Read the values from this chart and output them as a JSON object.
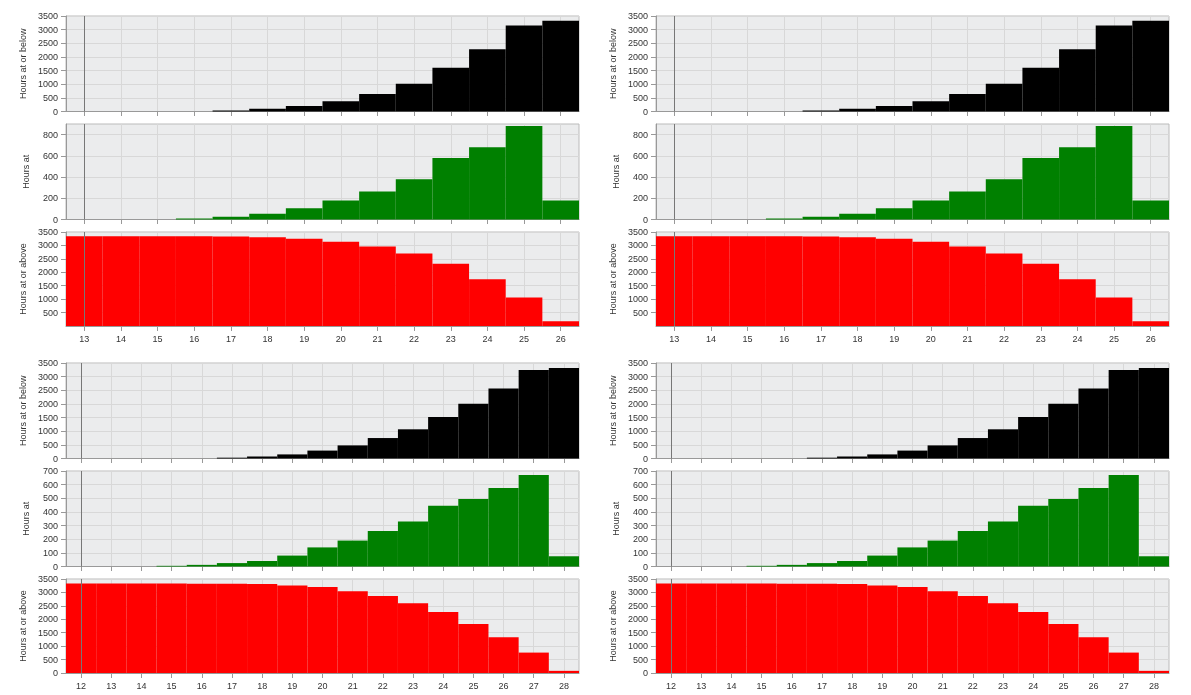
{
  "chart_data": [
    {
      "type": "histogram",
      "ylabel": "Hours at or below",
      "bins": [
        12.5,
        13.5,
        14.5,
        15.5,
        16.5,
        17.5,
        18.5,
        19.5,
        20.5,
        21.5,
        22.5,
        23.5,
        24.5,
        25.5,
        26.5
      ],
      "values": [
        0,
        0,
        0,
        0,
        40,
        100,
        200,
        380,
        640,
        1020,
        1600,
        2280,
        3150,
        3330
      ],
      "color": "#000000",
      "xlim": [
        12.5,
        26.5
      ],
      "xticks": [
        13,
        14,
        15,
        16,
        17,
        18,
        19,
        20,
        21,
        22,
        23,
        24,
        25,
        26
      ],
      "ylim": [
        0,
        3500
      ],
      "yticks": [
        0,
        500,
        1000,
        1500,
        2000,
        2500,
        3000,
        3500
      ],
      "tick_labels": "y",
      "grid": true,
      "ref_lines": [
        {
          "axis": "x",
          "value": 13
        }
      ]
    },
    {
      "type": "histogram",
      "ylabel": "Hours at",
      "bins": [
        12.5,
        13.5,
        14.5,
        15.5,
        16.5,
        17.5,
        18.5,
        19.5,
        20.5,
        21.5,
        22.5,
        23.5,
        24.5,
        25.5,
        26.5
      ],
      "values": [
        0,
        0,
        0,
        10,
        25,
        55,
        105,
        180,
        265,
        380,
        580,
        680,
        880,
        180
      ],
      "color": "#008000",
      "xlim": [
        12.5,
        26.5
      ],
      "xticks": [
        13,
        14,
        15,
        16,
        17,
        18,
        19,
        20,
        21,
        22,
        23,
        24,
        25,
        26
      ],
      "ylim": [
        0,
        900
      ],
      "yticks": [
        0,
        200,
        400,
        600,
        800
      ],
      "tick_labels": "y",
      "grid": true,
      "ref_lines": [
        {
          "axis": "x",
          "value": 13
        }
      ]
    },
    {
      "type": "histogram",
      "ylabel": "Hours at or above",
      "bins": [
        12.5,
        13.5,
        14.5,
        15.5,
        16.5,
        17.5,
        18.5,
        19.5,
        20.5,
        21.5,
        22.5,
        23.5,
        24.5,
        25.5,
        26.5
      ],
      "values": [
        3340,
        3340,
        3340,
        3340,
        3330,
        3300,
        3250,
        3140,
        2960,
        2700,
        2320,
        1740,
        1060,
        180
      ],
      "color": "#ff0000",
      "xlim": [
        12.5,
        26.5
      ],
      "xticks": [
        13,
        14,
        15,
        16,
        17,
        18,
        19,
        20,
        21,
        22,
        23,
        24,
        25,
        26
      ],
      "ylim": [
        0,
        3500
      ],
      "yticks": [
        500,
        1000,
        1500,
        2000,
        2500,
        3000,
        3500
      ],
      "grid": true,
      "ref_lines": [
        {
          "axis": "x",
          "value": 13
        }
      ]
    },
    {
      "type": "histogram",
      "ylabel": "Hours at or below",
      "bins": [
        12.5,
        13.5,
        14.5,
        15.5,
        16.5,
        17.5,
        18.5,
        19.5,
        20.5,
        21.5,
        22.5,
        23.5,
        24.5,
        25.5,
        26.5
      ],
      "values": [
        0,
        0,
        0,
        0,
        40,
        100,
        200,
        380,
        640,
        1020,
        1600,
        2280,
        3150,
        3330
      ],
      "color": "#000000",
      "xlim": [
        12.5,
        26.5
      ],
      "xticks": [
        13,
        14,
        15,
        16,
        17,
        18,
        19,
        20,
        21,
        22,
        23,
        24,
        25,
        26
      ],
      "ylim": [
        0,
        3500
      ],
      "yticks": [
        0,
        500,
        1000,
        1500,
        2000,
        2500,
        3000,
        3500
      ],
      "tick_labels": "y",
      "grid": true,
      "ref_lines": [
        {
          "axis": "x",
          "value": 13
        }
      ]
    },
    {
      "type": "histogram",
      "ylabel": "Hours at",
      "bins": [
        12.5,
        13.5,
        14.5,
        15.5,
        16.5,
        17.5,
        18.5,
        19.5,
        20.5,
        21.5,
        22.5,
        23.5,
        24.5,
        25.5,
        26.5
      ],
      "values": [
        0,
        0,
        0,
        10,
        25,
        55,
        105,
        180,
        265,
        380,
        580,
        680,
        880,
        180
      ],
      "color": "#008000",
      "xlim": [
        12.5,
        26.5
      ],
      "xticks": [
        13,
        14,
        15,
        16,
        17,
        18,
        19,
        20,
        21,
        22,
        23,
        24,
        25,
        26
      ],
      "ylim": [
        0,
        900
      ],
      "yticks": [
        0,
        200,
        400,
        600,
        800
      ],
      "tick_labels": "y",
      "grid": true,
      "ref_lines": [
        {
          "axis": "x",
          "value": 13
        }
      ]
    },
    {
      "type": "histogram",
      "ylabel": "Hours at or above",
      "bins": [
        12.5,
        13.5,
        14.5,
        15.5,
        16.5,
        17.5,
        18.5,
        19.5,
        20.5,
        21.5,
        22.5,
        23.5,
        24.5,
        25.5,
        26.5
      ],
      "values": [
        3340,
        3340,
        3340,
        3340,
        3330,
        3300,
        3250,
        3140,
        2960,
        2700,
        2320,
        1740,
        1060,
        180
      ],
      "color": "#ff0000",
      "xlim": [
        12.5,
        26.5
      ],
      "xticks": [
        13,
        14,
        15,
        16,
        17,
        18,
        19,
        20,
        21,
        22,
        23,
        24,
        25,
        26
      ],
      "ylim": [
        0,
        3500
      ],
      "yticks": [
        500,
        1000,
        1500,
        2000,
        2500,
        3000,
        3500
      ],
      "grid": true,
      "ref_lines": [
        {
          "axis": "x",
          "value": 13
        }
      ]
    },
    {
      "type": "histogram",
      "ylabel": "Hours at or below",
      "bins": [
        11.5,
        12.5,
        13.5,
        14.5,
        15.5,
        16.5,
        17.5,
        18.5,
        19.5,
        20.5,
        21.5,
        22.5,
        23.5,
        24.5,
        25.5,
        26.5,
        27.5,
        28.5
      ],
      "values": [
        0,
        0,
        0,
        0,
        0,
        30,
        70,
        150,
        290,
        480,
        750,
        1070,
        1520,
        2010,
        2570,
        3240,
        3320
      ],
      "color": "#000000",
      "xlim": [
        11.5,
        28.5
      ],
      "xticks": [
        12,
        13,
        14,
        15,
        16,
        17,
        18,
        19,
        20,
        21,
        22,
        23,
        24,
        25,
        26,
        27,
        28
      ],
      "ylim": [
        0,
        3500
      ],
      "yticks": [
        0,
        500,
        1000,
        1500,
        2000,
        2500,
        3000,
        3500
      ],
      "tick_labels": "y",
      "grid": true,
      "ref_lines": [
        {
          "axis": "x",
          "value": 12
        }
      ]
    },
    {
      "type": "histogram",
      "ylabel": "Hours at",
      "bins": [
        11.5,
        12.5,
        13.5,
        14.5,
        15.5,
        16.5,
        17.5,
        18.5,
        19.5,
        20.5,
        21.5,
        22.5,
        23.5,
        24.5,
        25.5,
        26.5,
        27.5,
        28.5
      ],
      "values": [
        0,
        0,
        0,
        5,
        12,
        25,
        40,
        80,
        140,
        190,
        260,
        330,
        445,
        495,
        575,
        670,
        75
      ],
      "color": "#008000",
      "xlim": [
        11.5,
        28.5
      ],
      "xticks": [
        12,
        13,
        14,
        15,
        16,
        17,
        18,
        19,
        20,
        21,
        22,
        23,
        24,
        25,
        26,
        27,
        28
      ],
      "ylim": [
        0,
        700
      ],
      "yticks": [
        0,
        100,
        200,
        300,
        400,
        500,
        600,
        700
      ],
      "tick_labels": "y",
      "grid": true,
      "ref_lines": [
        {
          "axis": "x",
          "value": 12
        }
      ]
    },
    {
      "type": "histogram",
      "ylabel": "Hours at or above",
      "bins": [
        11.5,
        12.5,
        13.5,
        14.5,
        15.5,
        16.5,
        17.5,
        18.5,
        19.5,
        20.5,
        21.5,
        22.5,
        23.5,
        24.5,
        25.5,
        26.5,
        27.5,
        28.5
      ],
      "values": [
        3330,
        3330,
        3330,
        3330,
        3320,
        3320,
        3310,
        3260,
        3200,
        3040,
        2870,
        2600,
        2270,
        1820,
        1330,
        760,
        80
      ],
      "color": "#ff0000",
      "xlim": [
        11.5,
        28.5
      ],
      "xticks": [
        12,
        13,
        14,
        15,
        16,
        17,
        18,
        19,
        20,
        21,
        22,
        23,
        24,
        25,
        26,
        27,
        28
      ],
      "ylim": [
        0,
        3500
      ],
      "yticks": [
        0,
        500,
        1000,
        1500,
        2000,
        2500,
        3000,
        3500
      ],
      "grid": true,
      "ref_lines": [
        {
          "axis": "x",
          "value": 12
        }
      ]
    },
    {
      "type": "histogram",
      "ylabel": "Hours at or below",
      "bins": [
        11.5,
        12.5,
        13.5,
        14.5,
        15.5,
        16.5,
        17.5,
        18.5,
        19.5,
        20.5,
        21.5,
        22.5,
        23.5,
        24.5,
        25.5,
        26.5,
        27.5,
        28.5
      ],
      "values": [
        0,
        0,
        0,
        0,
        0,
        30,
        70,
        150,
        290,
        480,
        750,
        1070,
        1520,
        2010,
        2570,
        3240,
        3320
      ],
      "color": "#000000",
      "xlim": [
        11.5,
        28.5
      ],
      "xticks": [
        12,
        13,
        14,
        15,
        16,
        17,
        18,
        19,
        20,
        21,
        22,
        23,
        24,
        25,
        26,
        27,
        28
      ],
      "ylim": [
        0,
        3500
      ],
      "yticks": [
        0,
        500,
        1000,
        1500,
        2000,
        2500,
        3000,
        3500
      ],
      "tick_labels": "y",
      "grid": true,
      "ref_lines": [
        {
          "axis": "x",
          "value": 12
        }
      ]
    },
    {
      "type": "histogram",
      "ylabel": "Hours at",
      "bins": [
        11.5,
        12.5,
        13.5,
        14.5,
        15.5,
        16.5,
        17.5,
        18.5,
        19.5,
        20.5,
        21.5,
        22.5,
        23.5,
        24.5,
        25.5,
        26.5,
        27.5,
        28.5
      ],
      "values": [
        0,
        0,
        0,
        5,
        12,
        25,
        40,
        80,
        140,
        190,
        260,
        330,
        445,
        495,
        575,
        670,
        75
      ],
      "color": "#008000",
      "xlim": [
        11.5,
        28.5
      ],
      "xticks": [
        12,
        13,
        14,
        15,
        16,
        17,
        18,
        19,
        20,
        21,
        22,
        23,
        24,
        25,
        26,
        27,
        28
      ],
      "ylim": [
        0,
        700
      ],
      "yticks": [
        0,
        100,
        200,
        300,
        400,
        500,
        600,
        700
      ],
      "tick_labels": "y",
      "grid": true,
      "ref_lines": [
        {
          "axis": "x",
          "value": 12
        }
      ]
    },
    {
      "type": "histogram",
      "ylabel": "Hours at or above",
      "bins": [
        11.5,
        12.5,
        13.5,
        14.5,
        15.5,
        16.5,
        17.5,
        18.5,
        19.5,
        20.5,
        21.5,
        22.5,
        23.5,
        24.5,
        25.5,
        26.5,
        27.5,
        28.5
      ],
      "values": [
        3330,
        3330,
        3330,
        3330,
        3320,
        3320,
        3310,
        3260,
        3200,
        3040,
        2870,
        2600,
        2270,
        1820,
        1330,
        760,
        80
      ],
      "color": "#ff0000",
      "xlim": [
        11.5,
        28.5
      ],
      "xticks": [
        12,
        13,
        14,
        15,
        16,
        17,
        18,
        19,
        20,
        21,
        22,
        23,
        24,
        25,
        26,
        27,
        28
      ],
      "ylim": [
        0,
        3500
      ],
      "yticks": [
        0,
        500,
        1000,
        1500,
        2000,
        2500,
        3000,
        3500
      ],
      "grid": true,
      "ref_lines": [
        {
          "axis": "x",
          "value": 12
        }
      ]
    }
  ]
}
